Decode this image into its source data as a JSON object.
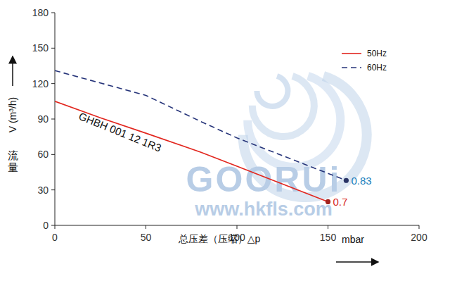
{
  "chart_data": {
    "type": "line",
    "x_label": "总压差（压缩）△p",
    "x_unit": "mbar",
    "y_name": "流量",
    "y_label": "V (m³/h)",
    "xlim": [
      0,
      200
    ],
    "xticks": [
      0,
      50,
      100,
      150,
      200
    ],
    "ylim": [
      0,
      180
    ],
    "yticks": [
      0,
      30,
      60,
      90,
      120,
      150,
      180
    ],
    "grid": false,
    "legend": "upper right",
    "series": [
      {
        "name": "50Hz",
        "color": "#e2261e",
        "line_style": "solid",
        "marker": "circle-end",
        "x": [
          0,
          25,
          50,
          80,
          100,
          125,
          150
        ],
        "values": [
          105,
          91,
          78,
          62,
          50,
          35,
          20
        ]
      },
      {
        "name": "60Hz",
        "color": "#27357a",
        "line_style": "dashed",
        "marker": "circle-end",
        "x": [
          0,
          50,
          80,
          100,
          130,
          160
        ],
        "values": [
          131,
          110,
          88,
          74,
          56,
          38
        ]
      }
    ],
    "annotations": [
      {
        "text": "0.7",
        "x": 150,
        "y": 20,
        "color": "#d7261d"
      },
      {
        "text": "0.83",
        "x": 160,
        "y": 38,
        "color": "#1b7fbd"
      },
      {
        "text": "GHBH 001 12 1R3",
        "x": 35,
        "y": 76,
        "color": "#111111"
      }
    ],
    "watermark": [
      "GOORUi",
      "www.hkfls.com"
    ]
  }
}
